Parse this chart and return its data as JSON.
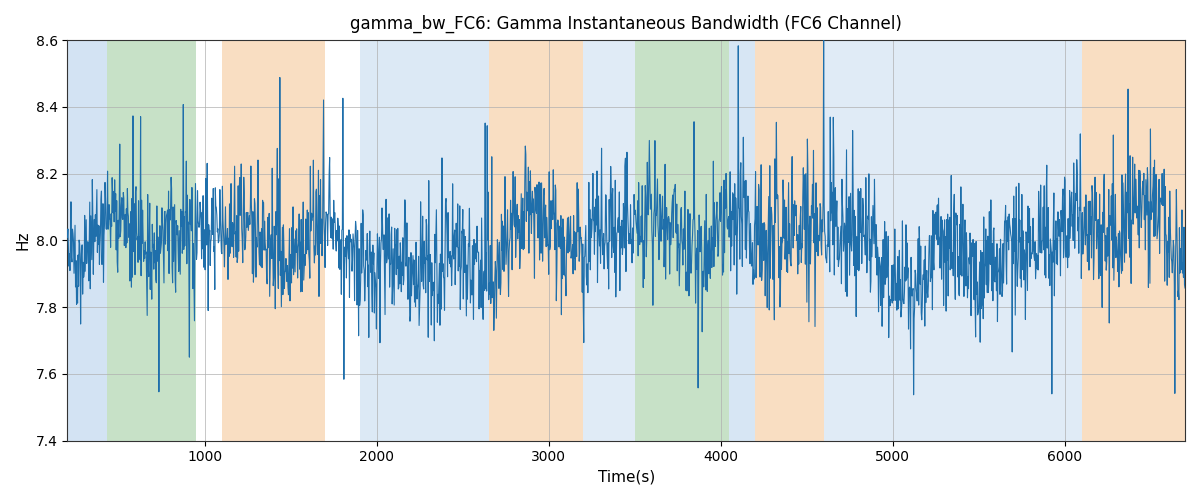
{
  "title": "gamma_bw_FC6: Gamma Instantaneous Bandwidth (FC6 Channel)",
  "xlabel": "Time(s)",
  "ylabel": "Hz",
  "ylim": [
    7.4,
    8.6
  ],
  "xlim": [
    200,
    6700
  ],
  "line_color": "#1f6fab",
  "line_width": 0.8,
  "background_color": "#ffffff",
  "grid_color": "#b0b0b0",
  "figsize": [
    12,
    5
  ],
  "dpi": 100,
  "bands": [
    {
      "xmin": 200,
      "xmax": 430,
      "color": "#a8c8e8",
      "alpha": 0.5
    },
    {
      "xmin": 430,
      "xmax": 950,
      "color": "#90c490",
      "alpha": 0.5
    },
    {
      "xmin": 1100,
      "xmax": 1700,
      "color": "#f5c99a",
      "alpha": 0.6
    },
    {
      "xmin": 1900,
      "xmax": 2650,
      "color": "#a8c8e8",
      "alpha": 0.4
    },
    {
      "xmin": 2650,
      "xmax": 3200,
      "color": "#f5c99a",
      "alpha": 0.6
    },
    {
      "xmin": 3200,
      "xmax": 3500,
      "color": "#a8c8e8",
      "alpha": 0.35
    },
    {
      "xmin": 3500,
      "xmax": 4050,
      "color": "#90c490",
      "alpha": 0.5
    },
    {
      "xmin": 4050,
      "xmax": 4200,
      "color": "#a8c8e8",
      "alpha": 0.45
    },
    {
      "xmin": 4200,
      "xmax": 4600,
      "color": "#f5c99a",
      "alpha": 0.6
    },
    {
      "xmin": 4600,
      "xmax": 6100,
      "color": "#a8c8e8",
      "alpha": 0.35
    },
    {
      "xmin": 6100,
      "xmax": 6700,
      "color": "#f5c99a",
      "alpha": 0.6
    }
  ],
  "n_points": 2200,
  "base_value": 8.0,
  "noise_std": 0.09,
  "seed": 7
}
